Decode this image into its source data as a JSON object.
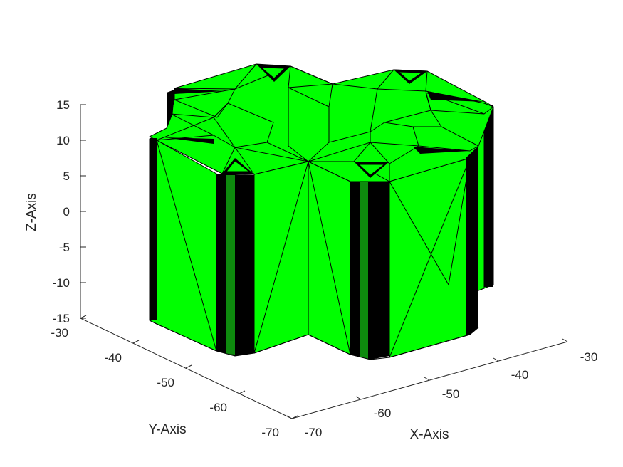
{
  "figure": {
    "axes": {
      "x": {
        "label": "X-Axis",
        "ticks": [
          "-70",
          "-60",
          "-50",
          "-40",
          "-30"
        ],
        "range": [
          -70,
          -30
        ]
      },
      "y": {
        "label": "Y-Axis",
        "ticks": [
          "-30",
          "-40",
          "-50",
          "-60",
          "-70"
        ],
        "range": [
          -70,
          -30
        ]
      },
      "z": {
        "label": "Z-Axis",
        "ticks": [
          "15",
          "10",
          "5",
          "0",
          "-5",
          "-10",
          "-15"
        ],
        "range": [
          -15,
          15
        ]
      }
    },
    "object": {
      "description_colors": {
        "face": "#00ff00",
        "edge": "#000000"
      },
      "shape": "four-lobe prism",
      "z_extent": [
        -15,
        15
      ]
    }
  }
}
